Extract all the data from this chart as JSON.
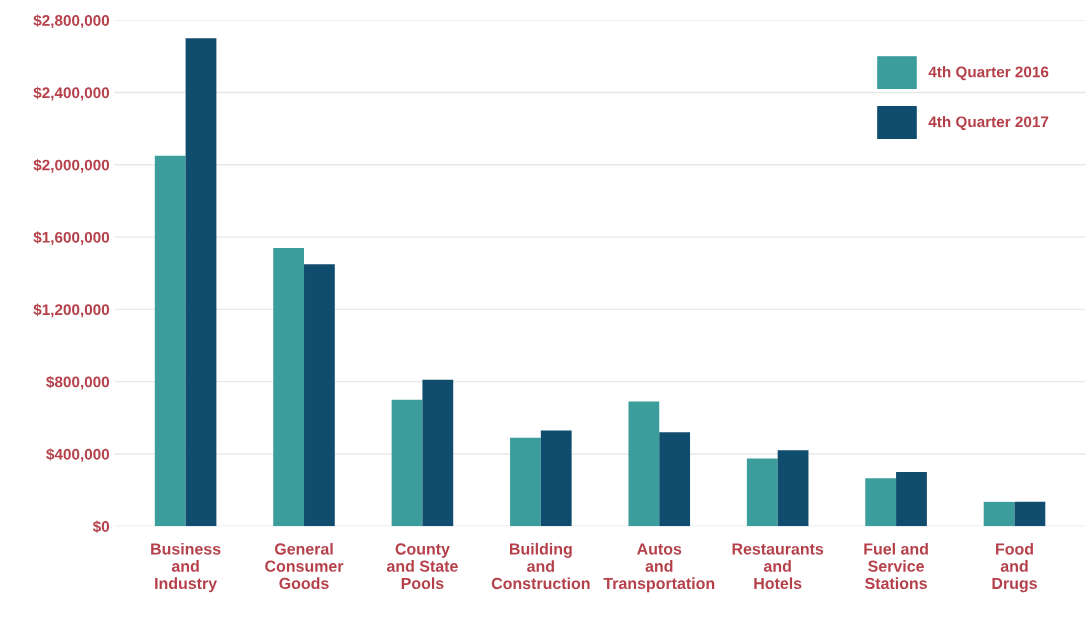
{
  "chart_data": {
    "type": "bar",
    "categories": [
      "Business\nand\nIndustry",
      "General\nConsumer\nGoods",
      "County\nand State\nPools",
      "Building\nand\nConstruction",
      "Autos\nand\nTransportation",
      "Restaurants\nand\nHotels",
      "Fuel and\nService\nStations",
      "Food\nand\nDrugs"
    ],
    "series": [
      {
        "name": "4th Quarter 2016",
        "color": "#3b9e9c",
        "values": [
          2050000,
          1540000,
          700000,
          490000,
          690000,
          375000,
          265000,
          135000
        ]
      },
      {
        "name": "4th Quarter 2017",
        "color": "#0f4c6e",
        "values": [
          2700000,
          1450000,
          810000,
          530000,
          520000,
          420000,
          300000,
          135000
        ]
      }
    ],
    "ylim": [
      0,
      2800000
    ],
    "yticks": [
      {
        "value": 0,
        "label": "$0"
      },
      {
        "value": 400000,
        "label": "$400,000"
      },
      {
        "value": 800000,
        "label": "$800,000"
      },
      {
        "value": 1200000,
        "label": "$1,200,000"
      },
      {
        "value": 1600000,
        "label": "$1,600,000"
      },
      {
        "value": 2000000,
        "label": "$2,000,000"
      },
      {
        "value": 2400000,
        "label": "$2,400,000"
      },
      {
        "value": 2800000,
        "label": "$2,800,000"
      }
    ],
    "grid": "y",
    "legend": "top right"
  }
}
